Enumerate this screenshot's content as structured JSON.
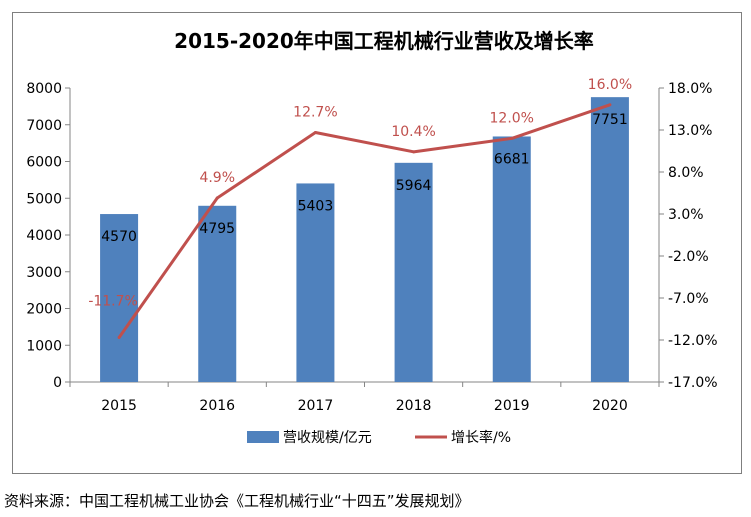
{
  "source_text": "资料来源：中国工程机械工业协会《工程机械行业“十四五”发展规划》",
  "chart_data": {
    "type": "bar",
    "title": "2015-2020年中国工程机械行业营收及增长率",
    "categories": [
      "2015",
      "2016",
      "2017",
      "2018",
      "2019",
      "2020"
    ],
    "series": [
      {
        "name": "营收规模/亿元",
        "type": "bar",
        "axis": "left",
        "color": "#4f81bd",
        "values": [
          4570,
          4795,
          5403,
          5964,
          6681,
          7751
        ],
        "labels": [
          "4570",
          "4795",
          "5403",
          "5964",
          "6681",
          "7751"
        ]
      },
      {
        "name": "增长率/%",
        "type": "line",
        "axis": "right",
        "color": "#c0504d",
        "values": [
          -11.7,
          4.9,
          12.7,
          10.4,
          12.0,
          16.0
        ],
        "labels": [
          "-11.7%",
          "4.9%",
          "12.7%",
          "10.4%",
          "12.0%",
          "16.0%"
        ]
      }
    ],
    "y_left": {
      "ylim": [
        0,
        8000
      ],
      "ticks": [
        "0",
        "1000",
        "2000",
        "3000",
        "4000",
        "5000",
        "6000",
        "7000",
        "8000"
      ]
    },
    "y_right": {
      "ylim": [
        -17.0,
        18.0
      ],
      "ticks": [
        "-17.0%",
        "-12.0%",
        "-7.0%",
        "-2.0%",
        "3.0%",
        "8.0%",
        "13.0%",
        "18.0%"
      ]
    },
    "grid": false,
    "legend": "bottom"
  }
}
